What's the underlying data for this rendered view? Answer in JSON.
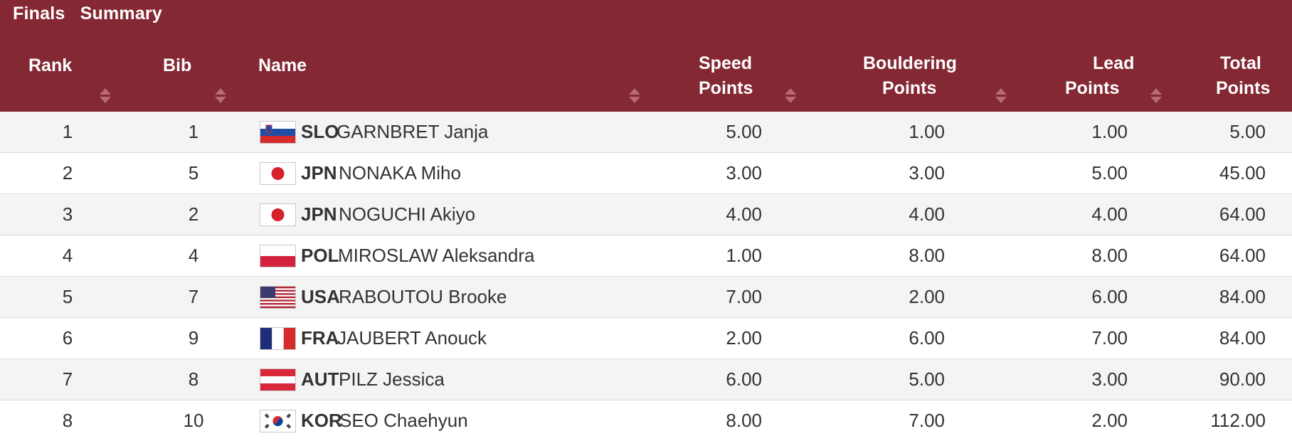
{
  "header": {
    "tab_finals": "Finals",
    "tab_summary": "Summary",
    "columns": {
      "rank": "Rank",
      "bib": "Bib",
      "name": "Name",
      "speed": [
        "Speed",
        "Points"
      ],
      "bouldering": [
        "Bouldering",
        "Points"
      ],
      "lead": [
        "Lead",
        "Points"
      ],
      "total": [
        "Total",
        "Points"
      ]
    }
  },
  "colors": {
    "header_bg": "#842833",
    "row_alt_bg": "#f4f4f4",
    "text": "#333333"
  },
  "rows": [
    {
      "rank": "1",
      "bib": "1",
      "noc": "SLO",
      "name": "GARNBRET Janja",
      "speed": "5.00",
      "bouldering": "1.00",
      "lead": "1.00",
      "total": "5.00",
      "flag": "slo-flag"
    },
    {
      "rank": "2",
      "bib": "5",
      "noc": "JPN",
      "name": "NONAKA Miho",
      "speed": "3.00",
      "bouldering": "3.00",
      "lead": "5.00",
      "total": "45.00",
      "flag": "jpn-flag"
    },
    {
      "rank": "3",
      "bib": "2",
      "noc": "JPN",
      "name": "NOGUCHI Akiyo",
      "speed": "4.00",
      "bouldering": "4.00",
      "lead": "4.00",
      "total": "64.00",
      "flag": "jpn-flag"
    },
    {
      "rank": "4",
      "bib": "4",
      "noc": "POL",
      "name": "MIROSLAW Aleksandra",
      "speed": "1.00",
      "bouldering": "8.00",
      "lead": "8.00",
      "total": "64.00",
      "flag": "pol-flag"
    },
    {
      "rank": "5",
      "bib": "7",
      "noc": "USA",
      "name": "RABOUTOU Brooke",
      "speed": "7.00",
      "bouldering": "2.00",
      "lead": "6.00",
      "total": "84.00",
      "flag": "usa-flag"
    },
    {
      "rank": "6",
      "bib": "9",
      "noc": "FRA",
      "name": "JAUBERT Anouck",
      "speed": "2.00",
      "bouldering": "6.00",
      "lead": "7.00",
      "total": "84.00",
      "flag": "fra-flag"
    },
    {
      "rank": "7",
      "bib": "8",
      "noc": "AUT",
      "name": "PILZ Jessica",
      "speed": "6.00",
      "bouldering": "5.00",
      "lead": "3.00",
      "total": "90.00",
      "flag": "aut-flag"
    },
    {
      "rank": "8",
      "bib": "10",
      "noc": "KOR",
      "name": "SEO Chaehyun",
      "speed": "8.00",
      "bouldering": "7.00",
      "lead": "2.00",
      "total": "112.00",
      "flag": "kor-flag"
    }
  ]
}
